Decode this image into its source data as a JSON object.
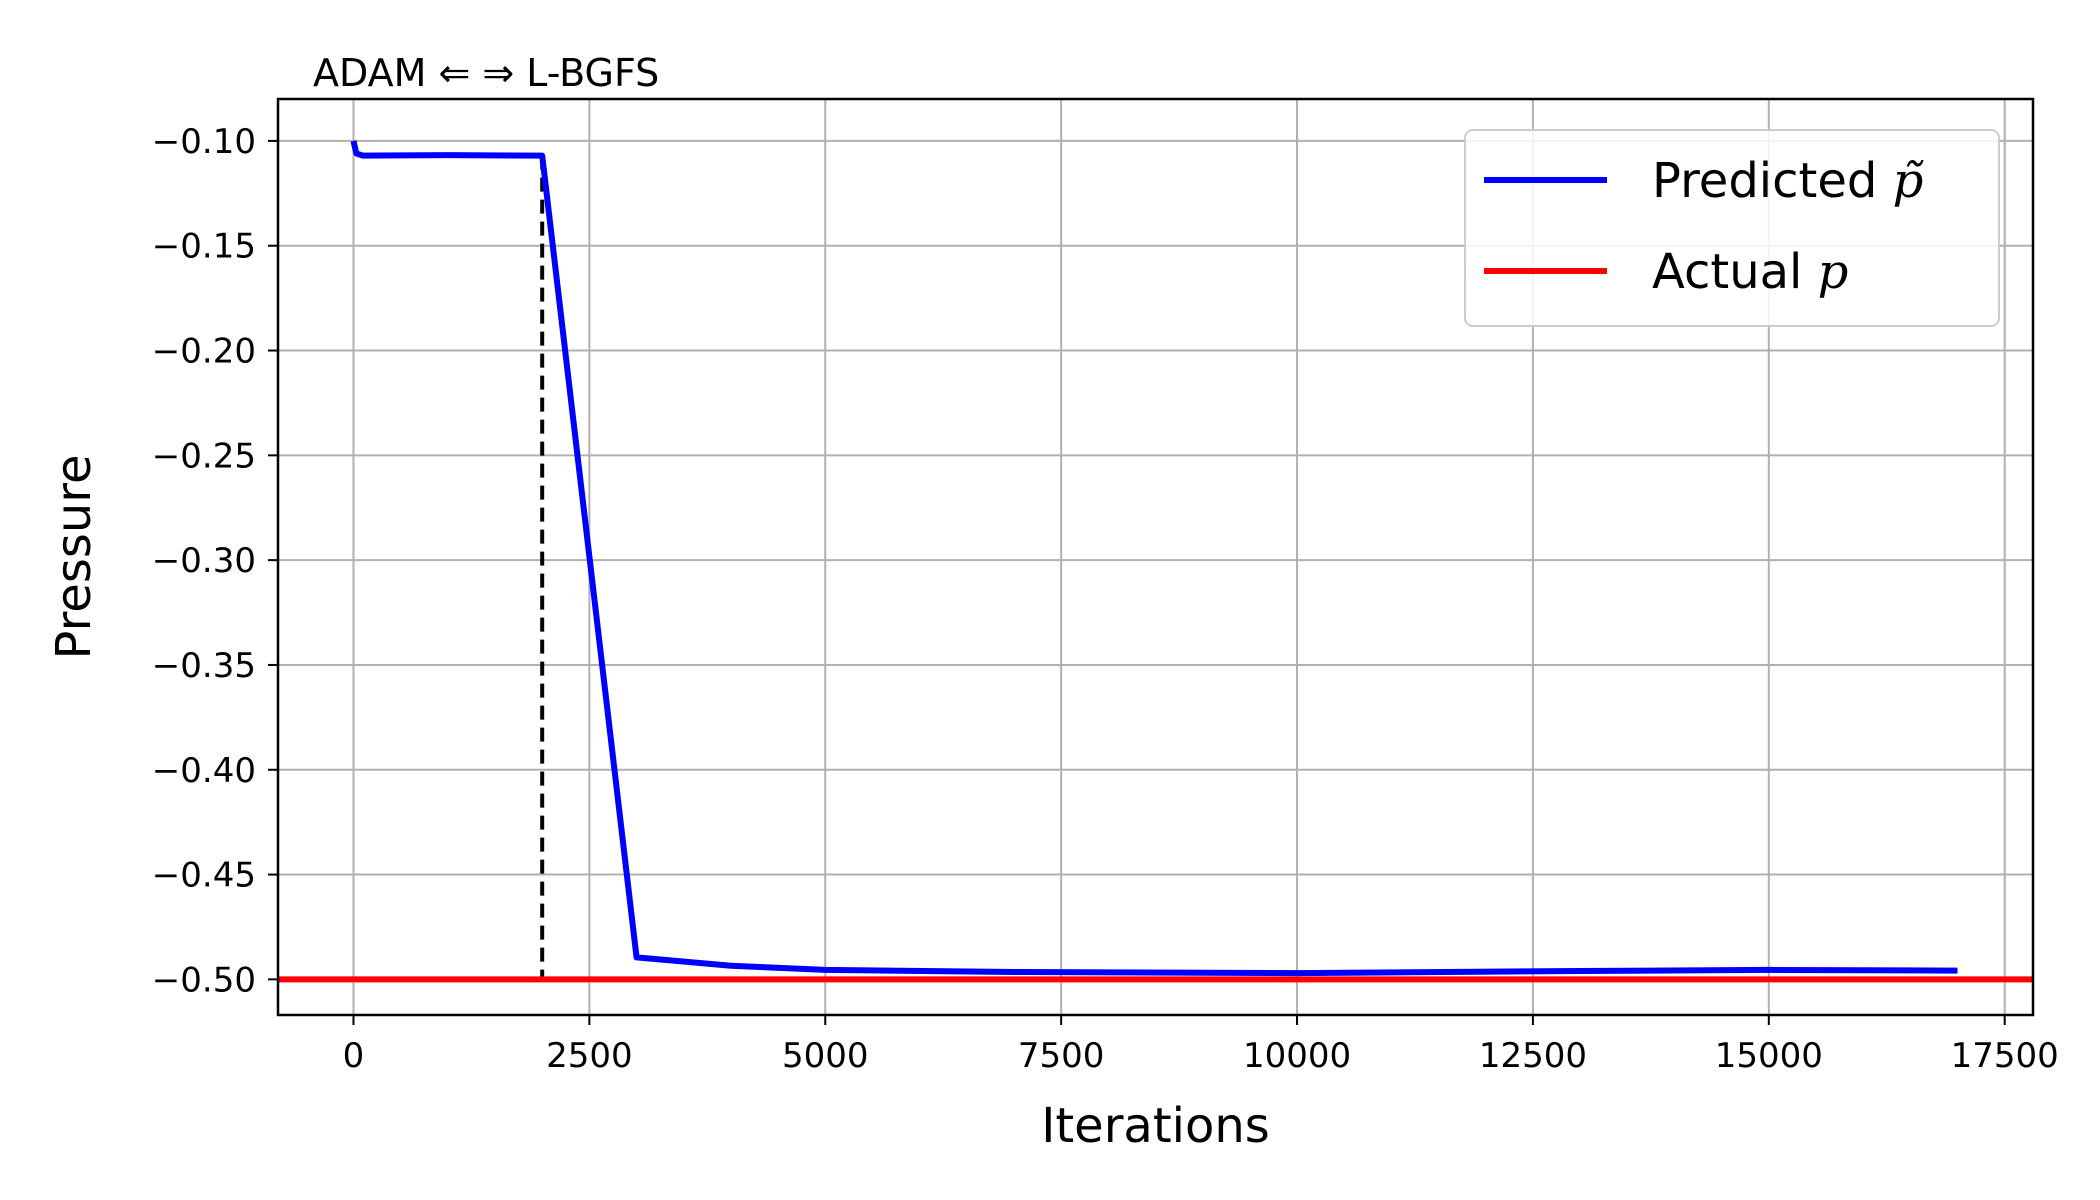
{
  "chart_data": {
    "type": "line",
    "xlabel": "Iterations",
    "ylabel": "Pressure",
    "phase_label": "ADAM ⇐ ⇒ L-BGFS",
    "xlim": [
      -800,
      17800
    ],
    "ylim": [
      -0.517,
      -0.08
    ],
    "x_ticks": [
      0,
      2500,
      5000,
      7500,
      10000,
      12500,
      15000,
      17500
    ],
    "x_tick_labels": [
      "0",
      "2500",
      "5000",
      "7500",
      "10000",
      "12500",
      "15000",
      "17500"
    ],
    "y_ticks": [
      -0.1,
      -0.15,
      -0.2,
      -0.25,
      -0.3,
      -0.35,
      -0.4,
      -0.45,
      -0.5
    ],
    "y_tick_labels": [
      "−0.10",
      "−0.15",
      "−0.20",
      "−0.25",
      "−0.30",
      "−0.35",
      "−0.40",
      "−0.45",
      "−0.50"
    ],
    "grid": true,
    "legend_position": "top-right",
    "switch_iteration": 2000,
    "series": [
      {
        "name": "Predicted",
        "symbol": "p̃",
        "color": "#0000ff",
        "x": [
          0,
          30,
          100,
          1000,
          2000,
          3000,
          4000,
          5000,
          7000,
          10000,
          13000,
          15000,
          17000
        ],
        "y": [
          -0.1,
          -0.106,
          -0.107,
          -0.1068,
          -0.107,
          -0.4895,
          -0.4935,
          -0.4955,
          -0.4965,
          -0.497,
          -0.496,
          -0.4955,
          -0.4958
        ]
      },
      {
        "name": "Actual",
        "symbol": "p",
        "color": "#ff0000",
        "x": [
          -800,
          17800
        ],
        "y": [
          -0.5,
          -0.5
        ]
      }
    ]
  }
}
